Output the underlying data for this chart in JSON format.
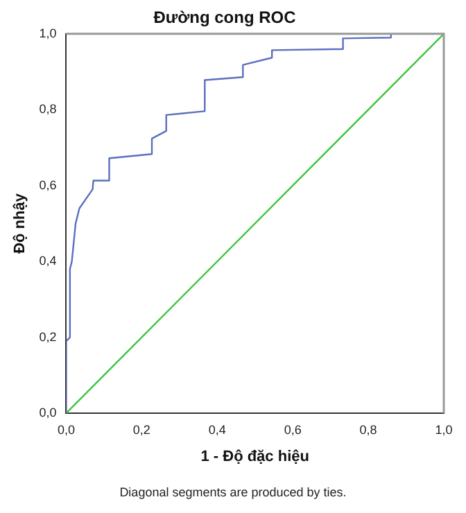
{
  "chart_data": {
    "type": "line",
    "title": "Đường cong ROC",
    "xlabel": "1 - Độ đặc hiệu",
    "ylabel": "Độ nhậy",
    "annotations": [
      "Diagonal segments are produced by ties."
    ],
    "xlim": [
      0,
      1
    ],
    "ylim": [
      0,
      1
    ],
    "xticks": [
      {
        "value": 0,
        "label": "0,0"
      },
      {
        "value": 0.2,
        "label": "0,2"
      },
      {
        "value": 0.4,
        "label": "0,4"
      },
      {
        "value": 0.6,
        "label": "0,6"
      },
      {
        "value": 0.8,
        "label": "0,8"
      },
      {
        "value": 1,
        "label": "1,0"
      }
    ],
    "yticks": [
      {
        "value": 0,
        "label": "0,0"
      },
      {
        "value": 0.2,
        "label": "0,2"
      },
      {
        "value": 0.4,
        "label": "0,4"
      },
      {
        "value": 0.6,
        "label": "0,6"
      },
      {
        "value": 0.8,
        "label": "0,8"
      },
      {
        "value": 1,
        "label": "1,0"
      }
    ],
    "grid": false,
    "legend": false,
    "marker": "none",
    "line_style": "solid",
    "series": [
      {
        "color": "#5b6fbf",
        "x": [
          0,
          0,
          0.01,
          0.01,
          0.015,
          0.02,
          0.025,
          0.035,
          0.07,
          0.072,
          0.114,
          0.114,
          0.227,
          0.227,
          0.265,
          0.265,
          0.367,
          0.367,
          0.468,
          0.468,
          0.545,
          0.545,
          0.733,
          0.733,
          0.86,
          0.86,
          1
        ],
        "values": [
          0,
          0.19,
          0.2,
          0.38,
          0.4,
          0.45,
          0.5,
          0.54,
          0.59,
          0.613,
          0.613,
          0.672,
          0.683,
          0.724,
          0.744,
          0.786,
          0.796,
          0.878,
          0.886,
          0.918,
          0.937,
          0.957,
          0.96,
          0.988,
          0.99,
          1,
          1
        ]
      },
      {
        "color": "#3cc43c",
        "x": [
          0,
          1
        ],
        "values": [
          0,
          1
        ]
      }
    ]
  }
}
